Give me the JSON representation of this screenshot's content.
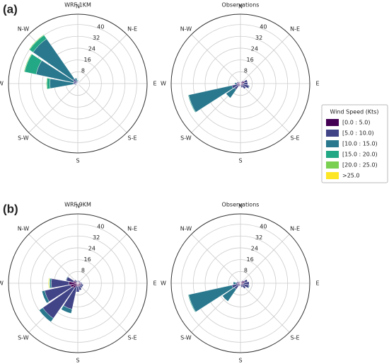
{
  "panel_labels": [
    "(a)",
    "(b)"
  ],
  "legend": {
    "title": "Wind Speed (Kts)",
    "items": [
      {
        "name": "[0.0 : 5.0)",
        "color": "#440154"
      },
      {
        "name": "[5.0 : 10.0)",
        "color": "#414487"
      },
      {
        "name": "[10.0 : 15.0)",
        "color": "#2a788e"
      },
      {
        "name": "[15.0 : 20.0)",
        "color": "#22a884"
      },
      {
        "name": "[20.0 : 25.0)",
        "color": "#7ad151"
      },
      {
        "name": ">25.0",
        "color": "#fde725"
      }
    ]
  },
  "chart_data": [
    {
      "type": "windrose",
      "title": "WRF 1KM",
      "categories": [
        "N",
        null,
        "N-E",
        null,
        "E",
        null,
        "S-E",
        null,
        "S",
        null,
        "S-W",
        null,
        "W",
        null,
        "N-W",
        null
      ],
      "series": [
        {
          "values": [
            0.5,
            0.3,
            0.2,
            0.2,
            0.3,
            0.3,
            0.3,
            0.3,
            0.3,
            0.3,
            0.3,
            0.5,
            1,
            1,
            1,
            0.5
          ]
        },
        {
          "values": [
            1,
            0.5,
            0.3,
            0.3,
            0.5,
            0.5,
            0.5,
            0.5,
            0.5,
            0.5,
            0.5,
            1,
            2,
            2,
            3,
            1.5
          ]
        },
        {
          "values": [
            1,
            0,
            0,
            0,
            0,
            0,
            0,
            0,
            0,
            0,
            0,
            0.5,
            16,
            26,
            33,
            2
          ]
        },
        {
          "values": [
            0,
            0,
            0,
            0,
            0,
            0,
            0,
            0,
            0,
            0,
            0,
            0,
            2,
            8,
            3,
            0
          ]
        },
        {
          "values": [
            0,
            0,
            0,
            0,
            0,
            0,
            0,
            0,
            0,
            0,
            0,
            0,
            0.5,
            0.5,
            0.5,
            0
          ]
        },
        {
          "values": [
            0,
            0,
            0,
            0,
            0,
            0,
            0,
            0,
            0,
            0,
            0,
            0,
            0,
            0,
            0,
            0
          ]
        }
      ],
      "rlim": [
        0,
        47
      ],
      "rticks": [
        8,
        16,
        24,
        32,
        40
      ]
    },
    {
      "type": "windrose",
      "title": "Observations",
      "categories": [
        "N",
        null,
        "N-E",
        null,
        "E",
        null,
        "S-E",
        null,
        "S",
        null,
        "S-W",
        null,
        "W",
        null,
        "N-W",
        null
      ],
      "series": [
        {
          "values": [
            1,
            1,
            1.5,
            3,
            2,
            2,
            1.5,
            1,
            1,
            1,
            2,
            2,
            2,
            1.5,
            1,
            1
          ]
        },
        {
          "values": [
            0.5,
            0.5,
            1,
            2,
            3,
            4,
            3,
            2,
            1,
            1,
            3,
            4,
            1,
            1,
            0.5,
            0.5
          ]
        },
        {
          "values": [
            0,
            0,
            0,
            0,
            0,
            0.5,
            0,
            0,
            0,
            0,
            7,
            30,
            1,
            0,
            0,
            0
          ]
        },
        {
          "values": [
            0,
            0,
            0,
            0,
            0,
            0,
            0,
            0,
            0,
            0,
            0,
            0.5,
            0,
            0,
            0,
            0
          ]
        },
        {
          "values": [
            0,
            0,
            0,
            0,
            0,
            0,
            0,
            0,
            0,
            0,
            0,
            0,
            0,
            0,
            0,
            0
          ]
        },
        {
          "values": [
            0,
            0,
            0,
            0,
            0,
            0,
            0,
            0,
            0,
            0,
            0,
            0,
            0,
            0,
            0,
            0
          ]
        }
      ],
      "rlim": [
        0,
        47
      ],
      "rticks": [
        8,
        16,
        24,
        32,
        40
      ]
    },
    {
      "type": "windrose",
      "title": "WRF 9KM",
      "categories": [
        "N",
        null,
        "N-E",
        null,
        "E",
        null,
        "S-E",
        null,
        "S",
        null,
        "S-W",
        null,
        "W",
        null,
        "N-W",
        null
      ],
      "series": [
        {
          "values": [
            1,
            1,
            1,
            1,
            2,
            2,
            2,
            2,
            2,
            2,
            4,
            5,
            6,
            3,
            1,
            1
          ]
        },
        {
          "values": [
            1,
            1,
            1,
            1,
            1,
            2,
            2,
            3,
            4,
            16,
            25,
            18,
            12,
            5,
            2,
            1
          ]
        },
        {
          "values": [
            0,
            0,
            0,
            0,
            0,
            0,
            0,
            0,
            0,
            3,
            3,
            2,
            1,
            0.5,
            0,
            0
          ]
        },
        {
          "values": [
            0,
            0,
            0,
            0,
            0,
            0,
            0,
            0,
            0,
            0,
            0,
            0,
            0.5,
            0,
            0,
            0
          ]
        },
        {
          "values": [
            0,
            0,
            0,
            0,
            0,
            0,
            0,
            0,
            0,
            0,
            0,
            0,
            0,
            0,
            0,
            0
          ]
        },
        {
          "values": [
            0,
            0,
            0,
            0,
            0,
            0,
            0,
            0,
            0,
            0,
            0,
            0,
            0.5,
            0,
            0,
            0
          ]
        }
      ],
      "rlim": [
        0,
        47
      ],
      "rticks": [
        8,
        16,
        24,
        32,
        40
      ]
    },
    {
      "type": "windrose",
      "title": "Observations",
      "categories": [
        "N",
        null,
        "N-E",
        null,
        "E",
        null,
        "S-E",
        null,
        "S",
        null,
        "S-W",
        null,
        "W",
        null,
        "N-W",
        null
      ],
      "series": [
        {
          "values": [
            1,
            1,
            1.5,
            3,
            2,
            2,
            1.5,
            1,
            1,
            1,
            2,
            2,
            2,
            1.5,
            1,
            1
          ]
        },
        {
          "values": [
            0.5,
            0.5,
            1,
            2,
            4,
            4,
            3,
            2,
            1,
            1,
            3,
            4,
            1,
            1,
            0.5,
            0.5
          ]
        },
        {
          "values": [
            0,
            0,
            0,
            0,
            0,
            0.5,
            0,
            0,
            0,
            0,
            10,
            30,
            2,
            0,
            0,
            0
          ]
        },
        {
          "values": [
            0,
            0,
            0,
            0,
            0,
            0,
            0,
            0,
            0,
            0,
            0,
            0.5,
            0,
            0,
            0,
            0
          ]
        },
        {
          "values": [
            0,
            0,
            0,
            0,
            0,
            0,
            0,
            0,
            0,
            0,
            0,
            0,
            0,
            0,
            0,
            0
          ]
        },
        {
          "values": [
            0,
            0,
            0,
            0,
            0,
            0,
            0,
            0,
            0,
            0,
            0,
            0,
            0,
            0,
            0,
            0
          ]
        }
      ],
      "rlim": [
        0,
        47
      ],
      "rticks": [
        8,
        16,
        24,
        32,
        40
      ]
    }
  ]
}
